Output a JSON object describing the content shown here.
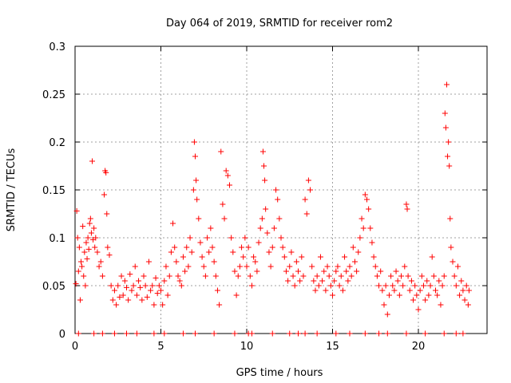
{
  "chart_data": {
    "type": "scatter",
    "title": "Day 064 of 2019, SRMTID for receiver rom2",
    "xlabel": "GPS time / hours",
    "ylabel": "SRMTID / TECUs",
    "xlim": [
      0,
      24
    ],
    "ylim": [
      0,
      0.3
    ],
    "x_ticks": [
      0,
      5,
      10,
      15,
      20
    ],
    "x_tick_labels": [
      "0",
      "5",
      "10",
      "15",
      "20"
    ],
    "y_ticks": [
      0,
      0.05,
      0.1,
      0.15,
      0.2,
      0.25,
      0.3
    ],
    "y_tick_labels": [
      "0",
      "0.05",
      "0.1",
      "0.15",
      "0.2",
      "0.25",
      "0.3"
    ],
    "grid": true,
    "marker": "plus",
    "color": "#ff0000",
    "series": [
      {
        "name": "SRMTID",
        "points": [
          [
            0.05,
            0.052
          ],
          [
            0.1,
            0.128
          ],
          [
            0.15,
            0.1
          ],
          [
            0.2,
            0.065
          ],
          [
            0.25,
            0.09
          ],
          [
            0.3,
            0.035
          ],
          [
            0.35,
            0.075
          ],
          [
            0.4,
            0.07
          ],
          [
            0.45,
            0.112
          ],
          [
            0.5,
            0.06
          ],
          [
            0.55,
            0.085
          ],
          [
            0.6,
            0.05
          ],
          [
            0.65,
            0.095
          ],
          [
            0.7,
            0.078
          ],
          [
            0.75,
            0.1
          ],
          [
            0.8,
            0.088
          ],
          [
            0.85,
            0.115
          ],
          [
            0.9,
            0.12
          ],
          [
            0.95,
            0.105
          ],
          [
            1.0,
            0.18
          ],
          [
            1.05,
            0.098
          ],
          [
            1.1,
            0.11
          ],
          [
            1.15,
            0.09
          ],
          [
            1.2,
            0.1
          ],
          [
            1.3,
            0.085
          ],
          [
            1.4,
            0.07
          ],
          [
            1.5,
            0.075
          ],
          [
            1.6,
            0.06
          ],
          [
            1.7,
            0.145
          ],
          [
            1.75,
            0.17
          ],
          [
            1.8,
            0.168
          ],
          [
            1.85,
            0.125
          ],
          [
            1.9,
            0.09
          ],
          [
            2.0,
            0.082
          ],
          [
            2.1,
            0.05
          ],
          [
            2.2,
            0.035
          ],
          [
            2.3,
            0.045
          ],
          [
            2.4,
            0.03
          ],
          [
            2.5,
            0.05
          ],
          [
            2.6,
            0.038
          ],
          [
            2.7,
            0.06
          ],
          [
            2.8,
            0.04
          ],
          [
            2.9,
            0.055
          ],
          [
            3.0,
            0.048
          ],
          [
            3.1,
            0.035
          ],
          [
            3.2,
            0.062
          ],
          [
            3.3,
            0.045
          ],
          [
            3.4,
            0.05
          ],
          [
            3.5,
            0.07
          ],
          [
            3.6,
            0.04
          ],
          [
            3.7,
            0.055
          ],
          [
            3.8,
            0.048
          ],
          [
            3.9,
            0.035
          ],
          [
            4.0,
            0.06
          ],
          [
            4.1,
            0.05
          ],
          [
            4.2,
            0.038
          ],
          [
            4.3,
            0.075
          ],
          [
            4.4,
            0.045
          ],
          [
            4.5,
            0.05
          ],
          [
            4.6,
            0.03
          ],
          [
            4.7,
            0.058
          ],
          [
            4.8,
            0.042
          ],
          [
            4.9,
            0.05
          ],
          [
            5.0,
            0.045
          ],
          [
            5.1,
            0.03
          ],
          [
            5.2,
            0.055
          ],
          [
            5.3,
            0.07
          ],
          [
            5.4,
            0.04
          ],
          [
            5.5,
            0.06
          ],
          [
            5.6,
            0.085
          ],
          [
            5.7,
            0.115
          ],
          [
            5.8,
            0.09
          ],
          [
            5.9,
            0.075
          ],
          [
            6.0,
            0.06
          ],
          [
            6.1,
            0.055
          ],
          [
            6.2,
            0.05
          ],
          [
            6.3,
            0.08
          ],
          [
            6.4,
            0.065
          ],
          [
            6.5,
            0.09
          ],
          [
            6.6,
            0.07
          ],
          [
            6.7,
            0.1
          ],
          [
            6.8,
            0.085
          ],
          [
            6.9,
            0.15
          ],
          [
            6.95,
            0.2
          ],
          [
            7.0,
            0.185
          ],
          [
            7.05,
            0.16
          ],
          [
            7.1,
            0.14
          ],
          [
            7.2,
            0.12
          ],
          [
            7.3,
            0.095
          ],
          [
            7.4,
            0.08
          ],
          [
            7.5,
            0.07
          ],
          [
            7.6,
            0.06
          ],
          [
            7.7,
            0.1
          ],
          [
            7.8,
            0.085
          ],
          [
            7.9,
            0.11
          ],
          [
            8.0,
            0.09
          ],
          [
            8.1,
            0.075
          ],
          [
            8.2,
            0.06
          ],
          [
            8.3,
            0.045
          ],
          [
            8.4,
            0.03
          ],
          [
            8.5,
            0.19
          ],
          [
            8.6,
            0.135
          ],
          [
            8.7,
            0.12
          ],
          [
            8.8,
            0.17
          ],
          [
            8.9,
            0.165
          ],
          [
            9.0,
            0.155
          ],
          [
            9.1,
            0.1
          ],
          [
            9.2,
            0.085
          ],
          [
            9.3,
            0.065
          ],
          [
            9.4,
            0.04
          ],
          [
            9.5,
            0.06
          ],
          [
            9.6,
            0.07
          ],
          [
            9.7,
            0.09
          ],
          [
            9.8,
            0.08
          ],
          [
            9.9,
            0.1
          ],
          [
            10.0,
            0.07
          ],
          [
            10.1,
            0.09
          ],
          [
            10.2,
            0.06
          ],
          [
            10.3,
            0.05
          ],
          [
            10.4,
            0.08
          ],
          [
            10.5,
            0.075
          ],
          [
            10.6,
            0.065
          ],
          [
            10.7,
            0.095
          ],
          [
            10.8,
            0.11
          ],
          [
            10.9,
            0.12
          ],
          [
            10.95,
            0.19
          ],
          [
            11.0,
            0.175
          ],
          [
            11.05,
            0.16
          ],
          [
            11.1,
            0.13
          ],
          [
            11.2,
            0.105
          ],
          [
            11.3,
            0.085
          ],
          [
            11.4,
            0.07
          ],
          [
            11.5,
            0.09
          ],
          [
            11.6,
            0.11
          ],
          [
            11.7,
            0.15
          ],
          [
            11.8,
            0.14
          ],
          [
            11.9,
            0.12
          ],
          [
            12.0,
            0.1
          ],
          [
            12.1,
            0.09
          ],
          [
            12.2,
            0.08
          ],
          [
            12.3,
            0.065
          ],
          [
            12.4,
            0.055
          ],
          [
            12.5,
            0.07
          ],
          [
            12.6,
            0.085
          ],
          [
            12.7,
            0.06
          ],
          [
            12.8,
            0.05
          ],
          [
            12.9,
            0.075
          ],
          [
            13.0,
            0.065
          ],
          [
            13.1,
            0.055
          ],
          [
            13.2,
            0.08
          ],
          [
            13.3,
            0.06
          ],
          [
            13.4,
            0.14
          ],
          [
            13.5,
            0.125
          ],
          [
            13.6,
            0.16
          ],
          [
            13.7,
            0.15
          ],
          [
            13.8,
            0.07
          ],
          [
            13.9,
            0.055
          ],
          [
            14.0,
            0.045
          ],
          [
            14.1,
            0.06
          ],
          [
            14.2,
            0.05
          ],
          [
            14.3,
            0.08
          ],
          [
            14.4,
            0.055
          ],
          [
            14.5,
            0.065
          ],
          [
            14.6,
            0.045
          ],
          [
            14.7,
            0.07
          ],
          [
            14.8,
            0.06
          ],
          [
            14.9,
            0.05
          ],
          [
            15.0,
            0.04
          ],
          [
            15.1,
            0.055
          ],
          [
            15.2,
            0.065
          ],
          [
            15.3,
            0.07
          ],
          [
            15.4,
            0.05
          ],
          [
            15.5,
            0.06
          ],
          [
            15.6,
            0.045
          ],
          [
            15.7,
            0.08
          ],
          [
            15.8,
            0.065
          ],
          [
            15.9,
            0.055
          ],
          [
            16.0,
            0.07
          ],
          [
            16.1,
            0.06
          ],
          [
            16.2,
            0.09
          ],
          [
            16.3,
            0.075
          ],
          [
            16.4,
            0.065
          ],
          [
            16.5,
            0.085
          ],
          [
            16.6,
            0.1
          ],
          [
            16.7,
            0.12
          ],
          [
            16.8,
            0.11
          ],
          [
            16.9,
            0.145
          ],
          [
            17.0,
            0.14
          ],
          [
            17.1,
            0.13
          ],
          [
            17.2,
            0.11
          ],
          [
            17.3,
            0.095
          ],
          [
            17.4,
            0.08
          ],
          [
            17.5,
            0.07
          ],
          [
            17.6,
            0.06
          ],
          [
            17.7,
            0.05
          ],
          [
            17.8,
            0.065
          ],
          [
            17.9,
            0.045
          ],
          [
            18.0,
            0.03
          ],
          [
            18.1,
            0.05
          ],
          [
            18.2,
            0.02
          ],
          [
            18.3,
            0.04
          ],
          [
            18.4,
            0.06
          ],
          [
            18.5,
            0.05
          ],
          [
            18.6,
            0.045
          ],
          [
            18.7,
            0.065
          ],
          [
            18.8,
            0.055
          ],
          [
            18.9,
            0.04
          ],
          [
            19.0,
            0.06
          ],
          [
            19.1,
            0.05
          ],
          [
            19.2,
            0.07
          ],
          [
            19.3,
            0.135
          ],
          [
            19.35,
            0.13
          ],
          [
            19.4,
            0.06
          ],
          [
            19.5,
            0.045
          ],
          [
            19.6,
            0.055
          ],
          [
            19.7,
            0.035
          ],
          [
            19.8,
            0.05
          ],
          [
            19.9,
            0.04
          ],
          [
            20.0,
            0.025
          ],
          [
            20.1,
            0.045
          ],
          [
            20.2,
            0.06
          ],
          [
            20.3,
            0.05
          ],
          [
            20.4,
            0.035
          ],
          [
            20.5,
            0.055
          ],
          [
            20.6,
            0.04
          ],
          [
            20.7,
            0.05
          ],
          [
            20.8,
            0.08
          ],
          [
            20.9,
            0.06
          ],
          [
            21.0,
            0.045
          ],
          [
            21.1,
            0.04
          ],
          [
            21.2,
            0.055
          ],
          [
            21.3,
            0.03
          ],
          [
            21.4,
            0.05
          ],
          [
            21.5,
            0.06
          ],
          [
            21.55,
            0.23
          ],
          [
            21.6,
            0.215
          ],
          [
            21.65,
            0.26
          ],
          [
            21.7,
            0.185
          ],
          [
            21.75,
            0.2
          ],
          [
            21.8,
            0.175
          ],
          [
            21.85,
            0.12
          ],
          [
            21.9,
            0.09
          ],
          [
            22.0,
            0.075
          ],
          [
            22.1,
            0.06
          ],
          [
            22.2,
            0.05
          ],
          [
            22.3,
            0.07
          ],
          [
            22.4,
            0.04
          ],
          [
            22.5,
            0.055
          ],
          [
            22.6,
            0.045
          ],
          [
            22.7,
            0.035
          ],
          [
            22.8,
            0.05
          ],
          [
            22.9,
            0.03
          ],
          [
            22.95,
            0.045
          ],
          [
            0.2,
            0
          ],
          [
            1.1,
            0
          ],
          [
            1.6,
            0
          ],
          [
            2.3,
            0
          ],
          [
            3.0,
            0
          ],
          [
            3.6,
            0
          ],
          [
            4.6,
            0
          ],
          [
            5.2,
            0
          ],
          [
            6.3,
            0
          ],
          [
            7.0,
            0
          ],
          [
            8.1,
            0
          ],
          [
            9.3,
            0
          ],
          [
            10.1,
            0
          ],
          [
            10.3,
            0
          ],
          [
            11.5,
            0
          ],
          [
            12.5,
            0
          ],
          [
            13.0,
            0
          ],
          [
            13.4,
            0
          ],
          [
            14.1,
            0
          ],
          [
            15.2,
            0
          ],
          [
            16.0,
            0
          ],
          [
            16.9,
            0
          ],
          [
            17.7,
            0
          ],
          [
            18.2,
            0
          ],
          [
            19.3,
            0
          ],
          [
            20.4,
            0
          ],
          [
            21.5,
            0
          ],
          [
            22.2,
            0
          ],
          [
            22.6,
            0
          ]
        ]
      }
    ]
  }
}
